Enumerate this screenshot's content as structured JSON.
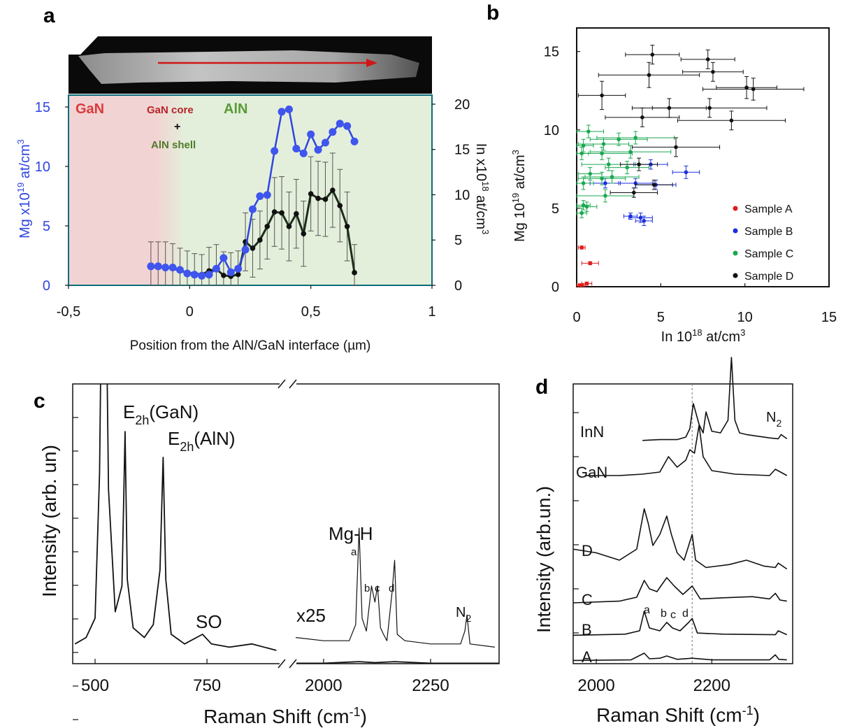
{
  "panels": {
    "a": {
      "label": "a",
      "regions": {
        "gan": "GaN",
        "core": "GaN core",
        "plus": "+",
        "shell": "AlN shell",
        "aln": "AlN"
      },
      "left_ylabel_base": "Mg x10",
      "left_ylabel_exp": "19",
      "left_ylabel_unit": " at/cm",
      "left_ylabel_unit_exp": "3",
      "right_ylabel_base": "In x10",
      "right_ylabel_exp": "18",
      "right_ylabel_unit": " at/cm",
      "right_ylabel_unit_exp": "3",
      "xlabel": "Position from the AlN/GaN interface (µm)",
      "x_ticks": [
        "-0,5",
        "0",
        "0,5",
        "1"
      ],
      "left_ticks": [
        "0",
        "5",
        "10",
        "15"
      ],
      "right_ticks": [
        "0",
        "5",
        "10",
        "15",
        "20"
      ],
      "colors": {
        "gan_bg": "#f2d3d3",
        "aln_bg": "#e3efda",
        "mg": "#2f45e0",
        "in": "#1c2e1c",
        "arrow": "#d01515",
        "gan_text": "#d93b3b",
        "core_text": "#b8232a",
        "shell_text": "#4f7a2a",
        "aln_text": "#5a9a36"
      }
    },
    "b": {
      "label": "b",
      "xlabel_base": "In 10",
      "xlabel_exp": "18",
      "xlabel_unit": " at/cm",
      "xlabel_unit_exp": "3",
      "ylabel_base": "Mg 10",
      "ylabel_exp": "19",
      "ylabel_unit": " at/cm",
      "ylabel_unit_exp": "3",
      "x_ticks": [
        "0",
        "5",
        "10",
        "15"
      ],
      "y_ticks": [
        "0",
        "5",
        "10",
        "15"
      ],
      "legend": [
        {
          "name": "Sample A",
          "color": "#e01b1b"
        },
        {
          "name": "Sample B",
          "color": "#1b2ee0"
        },
        {
          "name": "Sample C",
          "color": "#1aa850"
        },
        {
          "name": "Sample D",
          "color": "#111111"
        }
      ]
    },
    "c": {
      "label": "c",
      "ylabel": "Intensity (arb. un)",
      "xlabel_base": "Raman Shift (cm",
      "xlabel_exp": "-1",
      "xlabel_close": ")",
      "x_ticks": [
        "500",
        "750",
        "2000",
        "2250"
      ],
      "annotations": {
        "e2h_gan_E": "E",
        "e2h_gan_sub": "2h",
        "e2h_gan_rest": "(GaN)",
        "e2h_aln_E": "E",
        "e2h_aln_sub": "2h",
        "e2h_aln_rest": "(AlN)",
        "so": "SO",
        "x25": "x25",
        "mgh": "Mg-H",
        "a": "a",
        "b": "b",
        "c": "c",
        "d": "d",
        "n2_N": "N",
        "n2_sub": "2"
      }
    },
    "d": {
      "label": "d",
      "ylabel": "Intensity (arb.un.)",
      "xlabel_base": "Raman Shift (cm",
      "xlabel_exp": "-1",
      "xlabel_close": ")",
      "x_ticks": [
        "2000",
        "2200"
      ],
      "trace_labels": [
        "InN",
        "GaN",
        "D",
        "C",
        "B",
        "A"
      ],
      "annotations": {
        "a": "a",
        "b": "b",
        "c": "c",
        "d": "d",
        "n2_N": "N",
        "n2_sub": "2"
      }
    }
  },
  "chart_data": [
    {
      "panel": "a",
      "type": "line",
      "xlabel": "Position from the AlN/GaN interface (µm)",
      "ylabel": "Mg x10^19 at/cm^3",
      "y2label": "In x10^18 at/cm^3",
      "xlim": [
        -0.5,
        1.0
      ],
      "ylim": [
        0,
        16
      ],
      "y2lim": [
        0,
        21
      ],
      "series": [
        {
          "axis": "left",
          "color": "#2f45e0",
          "x": [
            -0.16,
            -0.13,
            -0.1,
            -0.07,
            -0.04,
            -0.01,
            0.02,
            0.05,
            0.08,
            0.11,
            0.14,
            0.17,
            0.2,
            0.23,
            0.26,
            0.29,
            0.32,
            0.35,
            0.38,
            0.41,
            0.44,
            0.47,
            0.5,
            0.53,
            0.56,
            0.59,
            0.62,
            0.65,
            0.68
          ],
          "y": [
            1.6,
            1.6,
            1.5,
            1.5,
            1.3,
            1.0,
            0.9,
            0.8,
            0.9,
            1.4,
            2.3,
            1.1,
            1.4,
            3.0,
            6.4,
            7.5,
            7.6,
            11.3,
            14.6,
            14.8,
            11.5,
            11.1,
            12.7,
            11.4,
            12.0,
            12.9,
            13.6,
            13.4,
            12.1
          ]
        },
        {
          "axis": "right",
          "x": [
            -0.16,
            -0.13,
            -0.1,
            -0.07,
            -0.04,
            -0.01,
            0.02,
            0.05,
            0.08,
            0.11,
            0.14,
            0.17,
            0.2,
            0.23,
            0.26,
            0.29,
            0.32,
            0.35,
            0.38,
            0.41,
            0.44,
            0.47,
            0.5,
            0.53,
            0.56,
            0.59,
            0.62,
            0.65,
            0.68
          ],
          "y": [
            2.0,
            2.0,
            2.0,
            1.9,
            1.6,
            1.4,
            1.3,
            1.2,
            1.6,
            1.8,
            1.1,
            1.0,
            1.2,
            4.8,
            4.1,
            5.0,
            6.5,
            8.1,
            8.0,
            6.5,
            7.9,
            5.7,
            10.1,
            9.6,
            9.5,
            10.5,
            8.8,
            6.5,
            1.4
          ],
          "err": [
            2.8,
            2.8,
            2.8,
            2.7,
            2.5,
            2.4,
            2.2,
            2.2,
            2.6,
            2.7,
            2.6,
            2.6,
            2.6,
            3.2,
            3.2,
            3.2,
            3.6,
            3.8,
            4.0,
            3.8,
            3.8,
            3.6,
            4.1,
            4.1,
            4.1,
            4.1,
            4.0,
            3.8,
            3.1
          ]
        }
      ]
    },
    {
      "panel": "b",
      "type": "scatter",
      "xlabel": "In 10^18 at/cm^3",
      "ylabel": "Mg 10^19 at/cm^3",
      "xlim": [
        0,
        15
      ],
      "ylim": [
        0,
        16.5
      ],
      "legend_position": "bottom-right",
      "series": [
        {
          "name": "Sample A",
          "color": "#e01b1b",
          "x": [
            0.3,
            0.8,
            0.3,
            0.6,
            0.2
          ],
          "y": [
            2.5,
            1.5,
            0.1,
            0.2,
            0.1
          ],
          "xerr": [
            0.2,
            0.5,
            0.2,
            0.3,
            0.2
          ],
          "yerr": [
            0.1,
            0.1,
            0.05,
            0.1,
            0.05
          ]
        },
        {
          "name": "Sample B",
          "color": "#1b2ee0",
          "x": [
            4.4,
            6.5,
            1.7,
            3.2,
            3.8,
            4.0,
            3.5,
            4.7
          ],
          "y": [
            7.8,
            7.3,
            6.6,
            4.5,
            4.4,
            4.2,
            6.6,
            6.5
          ],
          "xerr": [
            1.0,
            0.8,
            0.9,
            0.4,
            0.7,
            0.5,
            1.0,
            1.2
          ],
          "yerr": [
            0.3,
            0.4,
            0.3,
            0.2,
            0.3,
            0.3,
            0.3,
            0.3
          ]
        },
        {
          "name": "Sample C",
          "color": "#1aa850",
          "x": [
            0.7,
            1.6,
            2.5,
            0.4,
            1.5,
            3.2,
            3.5,
            0.3,
            1.9,
            3.0,
            0.8,
            1.5,
            2.1,
            0.4,
            1.7,
            0.4,
            0.6,
            0.3
          ],
          "y": [
            9.9,
            9.1,
            9.4,
            9.0,
            8.5,
            8.6,
            9.5,
            8.5,
            7.8,
            7.6,
            7.2,
            6.9,
            7.0,
            6.6,
            5.8,
            5.2,
            5.1,
            4.7
          ],
          "xerr": [
            0.9,
            1.5,
            1.7,
            0.6,
            1.8,
            2.4,
            2.3,
            0.4,
            1.6,
            1.3,
            0.7,
            1.4,
            1.6,
            0.6,
            1.7,
            0.4,
            0.6,
            0.3
          ],
          "yerr": [
            0.4,
            0.4,
            0.4,
            0.4,
            0.4,
            0.4,
            0.4,
            0.4,
            0.4,
            0.4,
            0.4,
            0.4,
            0.4,
            0.4,
            0.4,
            0.3,
            0.3,
            0.3
          ]
        },
        {
          "name": "Sample D",
          "color": "#111111",
          "x": [
            4.5,
            7.8,
            8.1,
            1.5,
            4.3,
            10.1,
            10.5,
            3.9,
            5.5,
            7.9,
            9.2,
            5.9,
            3.7,
            4.6,
            3.4
          ],
          "y": [
            14.8,
            14.5,
            13.7,
            12.2,
            13.5,
            12.7,
            12.6,
            10.8,
            11.4,
            11.4,
            10.6,
            8.9,
            7.8,
            6.5,
            6.0
          ],
          "xerr": [
            1.6,
            1.6,
            1.8,
            1.4,
            3.0,
            1.8,
            3.0,
            2.2,
            2.2,
            3.4,
            3.2,
            2.6,
            1.1,
            1.1,
            1.4
          ],
          "yerr": [
            0.6,
            0.6,
            0.6,
            0.9,
            0.8,
            0.7,
            0.7,
            0.6,
            0.6,
            0.6,
            0.6,
            0.6,
            0.4,
            0.3,
            0.3
          ]
        }
      ]
    },
    {
      "panel": "c",
      "type": "line",
      "xlabel": "Raman Shift (cm-1)",
      "ylabel": "Intensity (arb. un)",
      "x_axis": "broken",
      "xlim_left": [
        450,
        920
      ],
      "xlim_right": [
        1930,
        2410
      ],
      "series": [
        {
          "name": "spectrum",
          "segment": "left",
          "x": [
            455,
            480,
            500,
            510,
            516,
            520,
            524,
            530,
            545,
            560,
            567,
            572,
            585,
            610,
            630,
            645,
            652,
            658,
            670,
            700,
            740,
            760,
            800,
            850,
            905
          ],
          "y": [
            0.02,
            0.04,
            0.1,
            0.55,
            1.3,
            1.4,
            1.2,
            0.5,
            0.12,
            0.2,
            0.68,
            0.22,
            0.07,
            0.04,
            0.08,
            0.25,
            0.6,
            0.22,
            0.05,
            0.02,
            0.05,
            0.02,
            0.01,
            0.02,
            0.0
          ]
        },
        {
          "name": "x25",
          "segment": "right",
          "x": [
            1935,
            2000,
            2060,
            2075,
            2083,
            2090,
            2100,
            2112,
            2120,
            2126,
            2133,
            2140,
            2148,
            2160,
            2166,
            2172,
            2190,
            2250,
            2320,
            2330,
            2335,
            2342,
            2400
          ],
          "y": [
            0.04,
            0.03,
            0.03,
            0.08,
            0.38,
            0.1,
            0.06,
            0.2,
            0.15,
            0.2,
            0.07,
            0.05,
            0.03,
            0.18,
            0.28,
            0.05,
            0.03,
            0.02,
            0.02,
            0.06,
            0.11,
            0.02,
            0.01
          ]
        },
        {
          "name": "baseline",
          "segment": "right",
          "x": [
            1935,
            2000,
            2083,
            2120,
            2166,
            2250,
            2410
          ],
          "y": [
            -0.04,
            -0.04,
            -0.035,
            -0.038,
            -0.035,
            -0.04,
            -0.04
          ]
        }
      ]
    },
    {
      "panel": "d",
      "type": "line",
      "xlabel": "Raman Shift (cm-1)",
      "ylabel": "Intensity (arb.un.)",
      "xlim": [
        1960,
        2340
      ],
      "ref_line_x": 2166,
      "series": [
        {
          "name": "InN",
          "x": [
            2080,
            2110,
            2140,
            2155,
            2162,
            2168,
            2178,
            2185,
            2190,
            2200,
            2215,
            2228,
            2234,
            2240,
            2248,
            2260,
            2300,
            2315,
            2320,
            2330
          ],
          "y": [
            0.01,
            0.02,
            0.02,
            0.05,
            0.15,
            0.45,
            0.2,
            0.1,
            0.35,
            0.12,
            0.1,
            0.25,
            1.0,
            0.25,
            0.1,
            0.08,
            0.04,
            0.03,
            0.08,
            0.03
          ]
        },
        {
          "name": "GaN",
          "x": [
            1980,
            2040,
            2080,
            2110,
            2125,
            2140,
            2155,
            2162,
            2170,
            2178,
            2185,
            2200,
            2240,
            2300,
            2310,
            2330
          ],
          "y": [
            0.03,
            0.03,
            0.05,
            0.08,
            0.3,
            0.15,
            0.25,
            0.4,
            0.35,
            0.75,
            0.3,
            0.1,
            0.05,
            0.03,
            0.12,
            0.03
          ]
        },
        {
          "name": "D",
          "x": [
            1960,
            2000,
            2040,
            2070,
            2083,
            2090,
            2098,
            2110,
            2122,
            2130,
            2140,
            2152,
            2160,
            2166,
            2172,
            2190,
            2230,
            2260,
            2290,
            2310,
            2315,
            2330
          ],
          "y": [
            0.35,
            0.3,
            0.2,
            0.35,
            0.9,
            0.7,
            0.4,
            0.55,
            0.8,
            0.55,
            0.3,
            0.2,
            0.4,
            0.55,
            0.2,
            0.1,
            0.14,
            0.2,
            0.12,
            0.1,
            0.16,
            0.08
          ]
        },
        {
          "name": "C",
          "x": [
            1960,
            2040,
            2070,
            2083,
            2092,
            2105,
            2122,
            2135,
            2150,
            2166,
            2180,
            2220,
            2270,
            2300,
            2310,
            2318,
            2330
          ],
          "y": [
            0.05,
            0.08,
            0.15,
            0.45,
            0.3,
            0.25,
            0.5,
            0.35,
            0.2,
            0.35,
            0.12,
            0.14,
            0.16,
            0.12,
            0.22,
            0.1,
            0.08
          ]
        },
        {
          "name": "B",
          "x": [
            1960,
            2050,
            2075,
            2083,
            2092,
            2110,
            2122,
            2132,
            2145,
            2160,
            2166,
            2175,
            2220,
            2310,
            2315,
            2330
          ],
          "y": [
            0.02,
            0.04,
            0.1,
            0.45,
            0.15,
            0.1,
            0.25,
            0.15,
            0.1,
            0.25,
            0.32,
            0.06,
            0.04,
            0.03,
            0.1,
            0.03
          ]
        },
        {
          "name": "A",
          "x": [
            1960,
            2060,
            2083,
            2092,
            2110,
            2122,
            2140,
            2166,
            2200,
            2300,
            2310,
            2316,
            2330
          ],
          "y": [
            0.02,
            0.03,
            0.15,
            0.05,
            0.06,
            0.1,
            0.04,
            0.06,
            0.03,
            0.03,
            0.12,
            0.04,
            0.03
          ]
        }
      ]
    }
  ]
}
